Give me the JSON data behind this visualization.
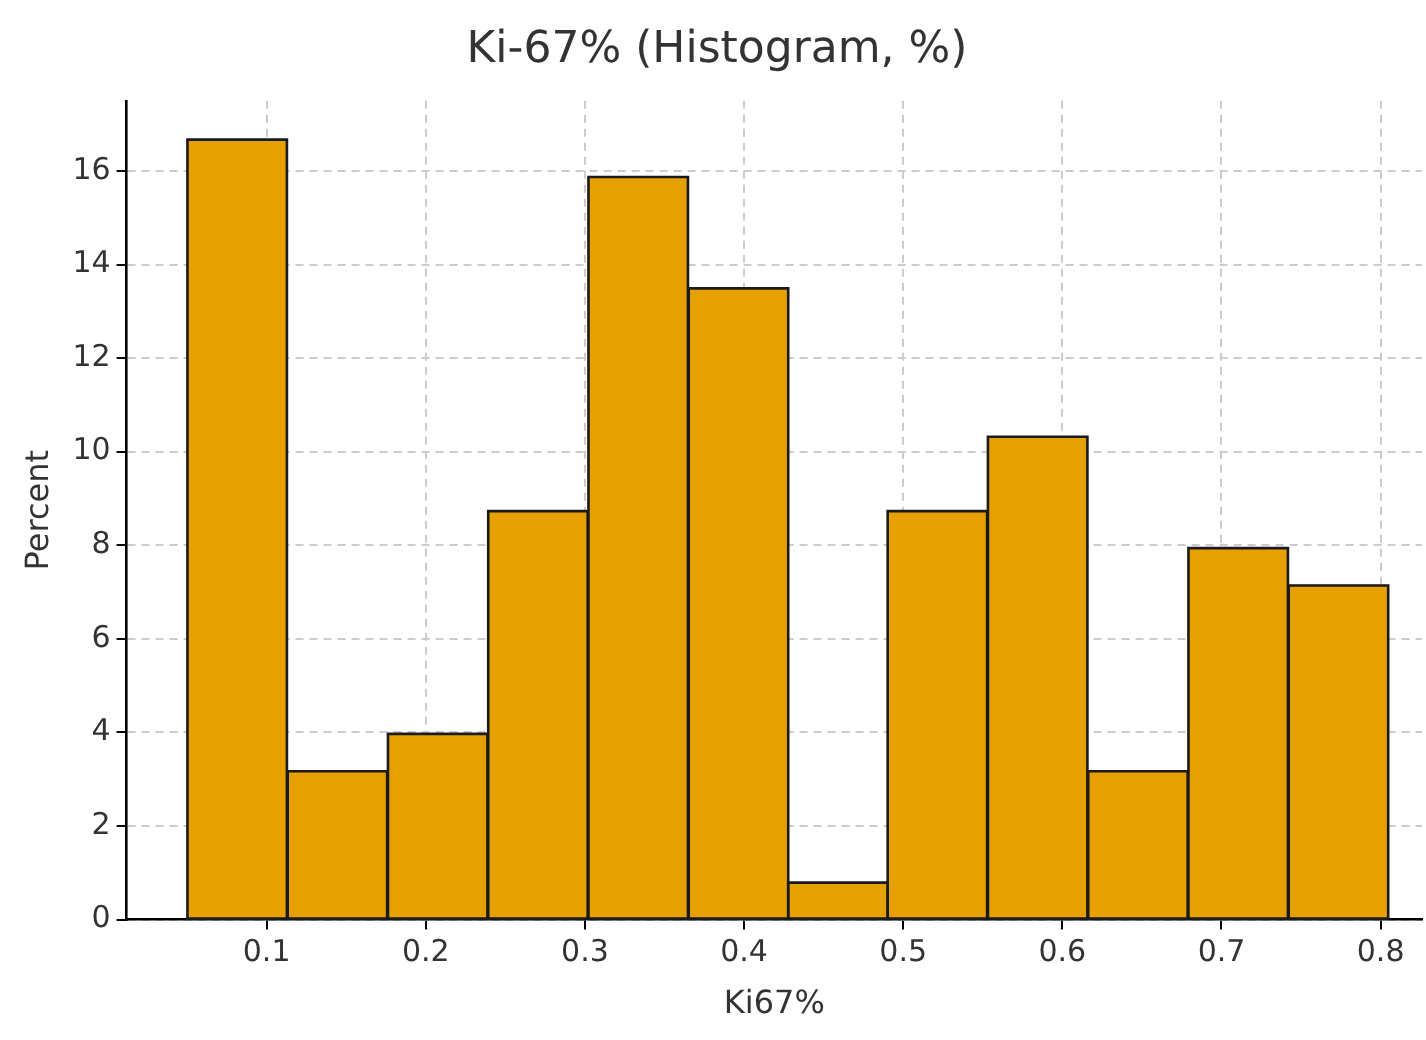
{
  "chart_data": {
    "type": "histogram",
    "title": "Ki-67% (Histogram, %)",
    "xlabel": "Ki67%",
    "ylabel": "Percent",
    "bins": [
      0.05,
      0.113,
      0.176,
      0.239,
      0.302,
      0.365,
      0.428,
      0.49,
      0.553,
      0.616,
      0.679,
      0.742,
      0.805
    ],
    "values": [
      16.67,
      3.17,
      3.97,
      8.73,
      15.87,
      13.49,
      0.79,
      8.73,
      10.32,
      3.17,
      7.94,
      7.14
    ],
    "color": "#e6a000",
    "xlim": [
      0.012,
      0.826
    ],
    "xticks": [
      0.1,
      0.2,
      0.3,
      0.4,
      0.5,
      0.6,
      0.7,
      0.8
    ],
    "ylim": [
      0,
      17.5
    ],
    "yticks": [
      0,
      2,
      4,
      6,
      8,
      10,
      12,
      14,
      16
    ],
    "grid": true,
    "legend": false
  }
}
